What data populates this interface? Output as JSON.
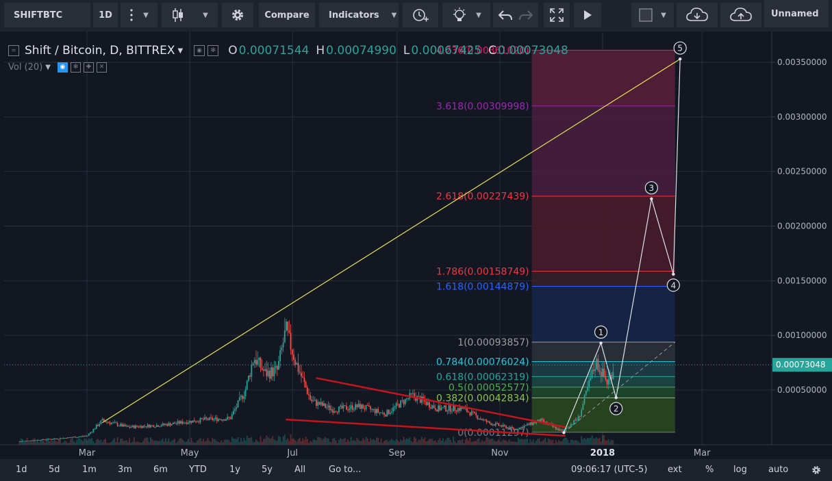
{
  "toolbar": {
    "symbol": "SHIFTBTC",
    "interval": "1D",
    "compare": "Compare",
    "indicators": "Indicators",
    "layout_name": "Unnamed",
    "icons": [
      "more-vert-icon",
      "candles-icon",
      "gear-icon",
      "alert-clock-icon",
      "lightbulb-icon",
      "undo-icon",
      "redo-icon",
      "fullscreen-icon",
      "play-icon",
      "square-icon",
      "cloud-download-icon",
      "cloud-upload-icon"
    ]
  },
  "legend": {
    "symbol_title": "Shift / Bitcoin, D, BITTREX",
    "open_label": "O",
    "open": "0.00071544",
    "high_label": "H",
    "high": "0.00074990",
    "low_label": "L",
    "low": "0.00067425",
    "close_label": "C",
    "close": "0.00073048",
    "volume": "Vol (20)"
  },
  "bottom": {
    "ranges": [
      "1d",
      "5d",
      "1m",
      "3m",
      "6m",
      "YTD",
      "1y",
      "5y",
      "All"
    ],
    "goto": "Go to...",
    "time": "09:06:17 (UTC-5)",
    "ext": "ext",
    "percent": "%",
    "log": "log",
    "auto": "auto"
  },
  "colors": {
    "background": "#131722",
    "up": "#26a69a",
    "down": "#ef5350",
    "trend_yellow": "#e8e84d",
    "trend_red": "#c3161c",
    "last_price": "#26a69a"
  },
  "chart_data": {
    "type": "candlestick",
    "title": "Shift / Bitcoin, D, BITTREX",
    "x_ticks": [
      "Mar",
      "May",
      "Jul",
      "Sep",
      "Nov",
      "2018",
      "Mar"
    ],
    "y_ticks": [
      "0.00050000",
      "0.00100000",
      "0.00150000",
      "0.00200000",
      "0.00250000",
      "0.00300000",
      "0.00350000"
    ],
    "ylim": [
      -0.0001,
      0.0038
    ],
    "last_price": "0.00073048",
    "price_path": [
      {
        "date": "2017-01-20",
        "price": 3e-05
      },
      {
        "date": "2017-02-15",
        "price": 6e-05
      },
      {
        "date": "2017-03-01",
        "price": 8e-05
      },
      {
        "date": "2017-03-10",
        "price": 0.00022
      },
      {
        "date": "2017-03-25",
        "price": 0.00016
      },
      {
        "date": "2017-04-15",
        "price": 0.00018
      },
      {
        "date": "2017-05-10",
        "price": 0.00023
      },
      {
        "date": "2017-05-25",
        "price": 0.00024
      },
      {
        "date": "2017-06-03",
        "price": 0.0005
      },
      {
        "date": "2017-06-08",
        "price": 0.0008
      },
      {
        "date": "2017-06-15",
        "price": 0.00065
      },
      {
        "date": "2017-06-22",
        "price": 0.00068
      },
      {
        "date": "2017-06-27",
        "price": 0.00105
      },
      {
        "date": "2017-07-03",
        "price": 0.00075
      },
      {
        "date": "2017-07-12",
        "price": 0.0004
      },
      {
        "date": "2017-07-25",
        "price": 0.00032
      },
      {
        "date": "2017-08-10",
        "price": 0.00035
      },
      {
        "date": "2017-08-25",
        "price": 0.00028
      },
      {
        "date": "2017-09-10",
        "price": 0.00045
      },
      {
        "date": "2017-09-25",
        "price": 0.00033
      },
      {
        "date": "2017-10-10",
        "price": 0.00033
      },
      {
        "date": "2017-10-25",
        "price": 0.0002
      },
      {
        "date": "2017-11-10",
        "price": 0.00014
      },
      {
        "date": "2017-11-25",
        "price": 0.00022
      },
      {
        "date": "2017-12-08",
        "price": 0.00012
      },
      {
        "date": "2017-12-18",
        "price": 0.00025
      },
      {
        "date": "2017-12-28",
        "price": 0.00076
      },
      {
        "date": "2018-01-04",
        "price": 0.00056
      },
      {
        "date": "2018-01-08",
        "price": 0.00073
      }
    ],
    "fibonacci": [
      {
        "ratio": "0",
        "price": "0.00011297",
        "value": 0.00011297,
        "color": "#787b86",
        "fill": "#1f2a2a"
      },
      {
        "ratio": "0.382",
        "price": "0.00042834",
        "value": 0.00042834,
        "color": "#8bc34a",
        "fill": "#2a4a1e"
      },
      {
        "ratio": "0.5",
        "price": "0.00052577",
        "value": 0.00052577,
        "color": "#4caf50",
        "fill": "#1e4a2a"
      },
      {
        "ratio": "0.618",
        "price": "0.00062319",
        "value": 0.00062319,
        "color": "#26a69a",
        "fill": "#1b4a45"
      },
      {
        "ratio": "0.784",
        "price": "0.00076024",
        "value": 0.00076024,
        "color": "#26c6da",
        "fill": "#1f3f4a"
      },
      {
        "ratio": "1",
        "price": "0.00093857",
        "value": 0.00093857,
        "color": "#9e9e9e",
        "fill": "#2e3138"
      },
      {
        "ratio": "1.618",
        "price": "0.00144879",
        "value": 0.00144879,
        "color": "#2962ff",
        "fill": "#16274a"
      },
      {
        "ratio": "1.786",
        "price": "0.00158749",
        "value": 0.00158749,
        "color": "#f23645",
        "fill": "#3a1e28"
      },
      {
        "ratio": "2.618",
        "price": "0.00227439",
        "value": 0.00227439,
        "color": "#f23645",
        "fill": "#4a1c2a"
      },
      {
        "ratio": "3.618",
        "price": "0.00309998",
        "value": 0.00309998,
        "color": "#9c27b0",
        "fill": "#4a1e40"
      },
      {
        "ratio": "4.236",
        "price": "0.00361020",
        "value": 0.0036102,
        "color": "#e91e63",
        "fill": "#5a1e38"
      }
    ],
    "fib_range": {
      "start": "2017-11-20",
      "end": "2018-02-13"
    },
    "trendlines": [
      {
        "name": "support-line-yellow",
        "color": "#e8e84d",
        "from": {
          "date": "2017-03-10",
          "price": 0.0002
        },
        "to": {
          "date": "2018-02-16",
          "price": 0.00353
        }
      },
      {
        "name": "wedge-upper-red",
        "color": "#c3161c",
        "from": {
          "date": "2017-07-15",
          "price": 0.00061
        },
        "to": {
          "date": "2017-12-10",
          "price": 0.00016
        }
      },
      {
        "name": "wedge-lower-red",
        "color": "#c3161c",
        "from": {
          "date": "2017-06-27",
          "price": 0.00023
        },
        "to": {
          "date": "2017-12-10",
          "price": 8e-05
        }
      }
    ],
    "elliott_waves": [
      {
        "label": "",
        "date": "2017-12-09",
        "price": 0.00011
      },
      {
        "label": "1",
        "date": "2017-12-31",
        "price": 0.00093
      },
      {
        "label": "2",
        "date": "2018-01-09",
        "price": 0.00043
      },
      {
        "label": "3",
        "date": "2018-01-30",
        "price": 0.00225
      },
      {
        "label": "4",
        "date": "2018-02-12",
        "price": 0.00156
      },
      {
        "label": "5",
        "date": "2018-02-16",
        "price": 0.00353
      }
    ]
  }
}
